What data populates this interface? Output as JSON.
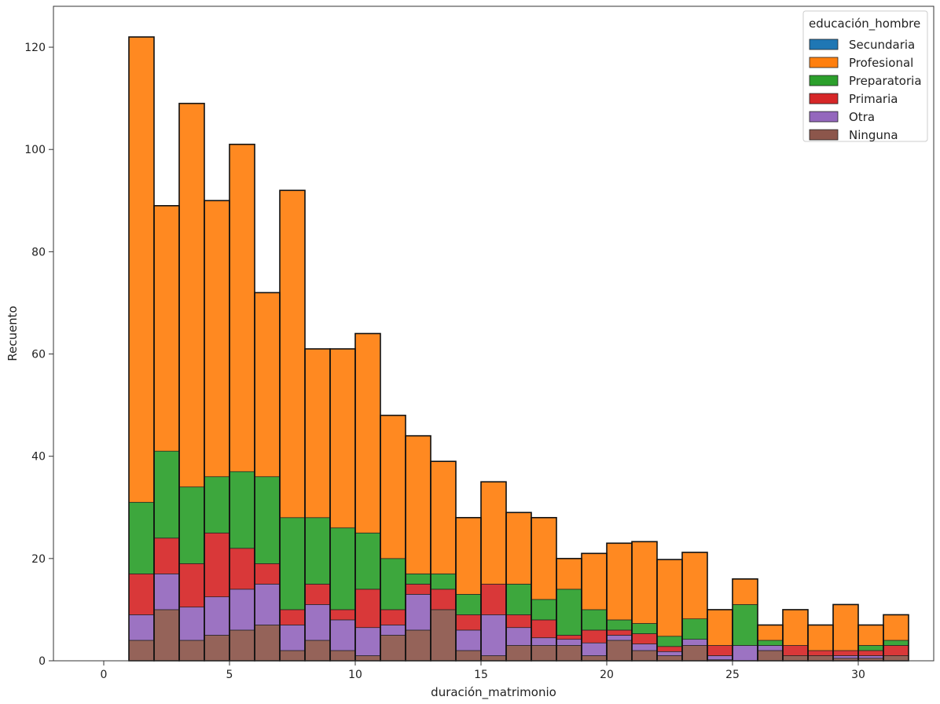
{
  "chart_data": {
    "type": "bar",
    "stacked": true,
    "xlabel": "duración_matrimonio",
    "ylabel": "Recuento",
    "xlim": [
      -2,
      33
    ],
    "ylim": [
      0,
      128
    ],
    "x_ticks": [
      0,
      5,
      10,
      15,
      20,
      25,
      30
    ],
    "y_ticks": [
      0,
      20,
      40,
      60,
      80,
      100,
      120
    ],
    "grid": false,
    "legend": {
      "title": "educación_hombre",
      "position": "top-right"
    },
    "bins": [
      [
        1.0,
        2.0
      ],
      [
        2.0,
        3.0
      ],
      [
        3.0,
        4.0
      ],
      [
        4.0,
        5.0
      ],
      [
        5.0,
        6.0
      ],
      [
        6.0,
        7.0
      ],
      [
        7.0,
        8.0
      ],
      [
        8.0,
        9.0
      ],
      [
        9.0,
        10.0
      ],
      [
        10.0,
        11.0
      ],
      [
        11.0,
        12.0
      ],
      [
        12.0,
        13.0
      ],
      [
        13.0,
        14.0
      ],
      [
        14.0,
        15.0
      ],
      [
        15.0,
        16.0
      ],
      [
        16.0,
        17.0
      ],
      [
        17.0,
        18.0
      ],
      [
        18.0,
        19.0
      ],
      [
        19.0,
        20.0
      ],
      [
        20.0,
        21.0
      ],
      [
        21.0,
        22.0
      ],
      [
        22.0,
        23.0
      ],
      [
        23.0,
        24.0
      ],
      [
        24.0,
        25.0
      ],
      [
        25.0,
        26.0
      ],
      [
        26.0,
        27.0
      ],
      [
        27.0,
        28.0
      ],
      [
        28.0,
        29.0
      ],
      [
        29.0,
        30.0
      ],
      [
        30.0,
        31.0
      ],
      [
        31.0,
        32.0
      ]
    ],
    "series": [
      {
        "name": "Secundaria",
        "color": "#1f77b4",
        "values": [
          0,
          0,
          0,
          0,
          0,
          0,
          0,
          0,
          0,
          0,
          0,
          0,
          0,
          0,
          0,
          0,
          0,
          0,
          0,
          0,
          0,
          0,
          0,
          0,
          0,
          0,
          0,
          0,
          0,
          0,
          0
        ]
      },
      {
        "name": "Profesional",
        "color": "#ff7f0e",
        "values": [
          91,
          48,
          75,
          54,
          64,
          36,
          64,
          33,
          35,
          39,
          28,
          27,
          22,
          15,
          20,
          14,
          16,
          6,
          11,
          15,
          16,
          15,
          13,
          7,
          5,
          3,
          7,
          5,
          9,
          4,
          5
        ]
      },
      {
        "name": "Preparatoria",
        "color": "#2ca02c",
        "values": [
          14,
          17,
          15,
          11,
          15,
          17,
          18,
          13,
          16,
          11,
          10,
          2,
          3,
          4,
          0,
          6,
          4,
          9,
          4,
          2,
          2,
          2,
          4,
          0,
          8,
          1,
          0,
          0,
          0,
          1,
          1
        ]
      },
      {
        "name": "Primaria",
        "color": "#d62728",
        "values": [
          8,
          7,
          8.5,
          12.5,
          8,
          4,
          3,
          4,
          2,
          7.5,
          3,
          2,
          4,
          3,
          6,
          2.5,
          3.5,
          0.8,
          2.5,
          1,
          2,
          1,
          0,
          2,
          0,
          0,
          2,
          1,
          1,
          1,
          2
        ]
      },
      {
        "name": "Otra",
        "color": "#9467bd",
        "values": [
          5,
          7,
          6.5,
          7.5,
          8,
          8,
          5,
          7,
          6,
          5.5,
          2,
          7,
          0,
          4,
          8,
          3.5,
          1.5,
          1.2,
          2.5,
          1,
          1.3,
          0.8,
          1.2,
          0.8,
          3,
          1,
          0,
          0,
          0.5,
          0.5,
          0
        ]
      },
      {
        "name": "Ninguna",
        "color": "#8c564b",
        "values": [
          4,
          10,
          4,
          5,
          6,
          7,
          2,
          4,
          2,
          1,
          5,
          6,
          10,
          2,
          1,
          3,
          3,
          3,
          1,
          4,
          2,
          1,
          3,
          0.2,
          0,
          2,
          1,
          1,
          0.5,
          0.5,
          1
        ]
      }
    ]
  }
}
